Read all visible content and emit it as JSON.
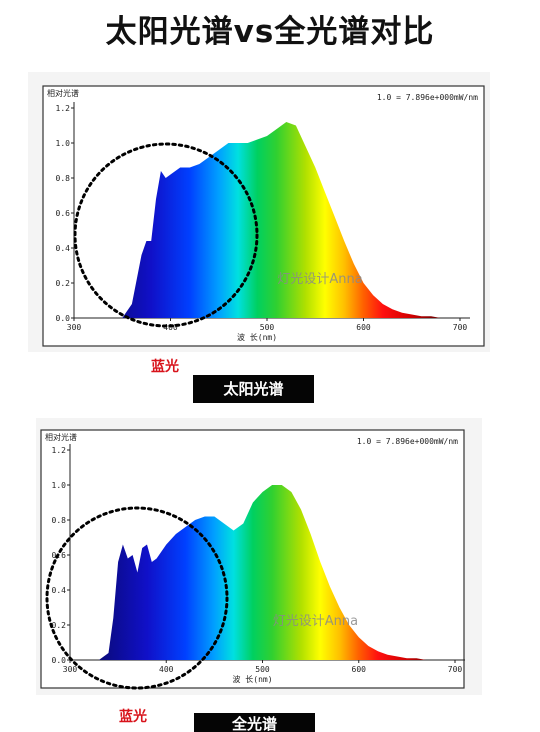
{
  "page_title": "太阳光谱vs全光谱对比",
  "colors": {
    "highlight": "#d8131b",
    "badge_bg": "#050505",
    "badge_text": "#ffffff"
  },
  "charts": [
    {
      "blue_label": "蓝光",
      "caption": "太阳光谱"
    },
    {
      "blue_label": "蓝光",
      "caption": "全光谱"
    }
  ],
  "chart_data": [
    {
      "type": "area",
      "title": "相对光谱",
      "legend_text": "1.0 = 7.896e+000mW/nm",
      "xlabel": "波 长(nm)",
      "x_ticks": [
        "300",
        "400",
        "500",
        "600",
        "700"
      ],
      "y_ticks": [
        "0.0",
        "0.2",
        "0.4",
        "0.6",
        "0.8",
        "1.0",
        "1.2"
      ],
      "xlim": [
        300,
        700
      ],
      "ylim": [
        0,
        1.2
      ],
      "annotation": "灯光设计Anna",
      "x": [
        350,
        360,
        370,
        375,
        380,
        385,
        390,
        395,
        400,
        410,
        420,
        430,
        440,
        450,
        460,
        470,
        480,
        490,
        500,
        510,
        520,
        530,
        540,
        550,
        560,
        570,
        580,
        590,
        600,
        610,
        620,
        630,
        640,
        650,
        660,
        670,
        680
      ],
      "values": [
        0.0,
        0.08,
        0.36,
        0.44,
        0.44,
        0.68,
        0.84,
        0.8,
        0.82,
        0.86,
        0.86,
        0.88,
        0.92,
        0.96,
        1.0,
        1.0,
        1.0,
        1.02,
        1.04,
        1.08,
        1.12,
        1.1,
        0.98,
        0.86,
        0.72,
        0.58,
        0.44,
        0.31,
        0.2,
        0.13,
        0.08,
        0.05,
        0.03,
        0.02,
        0.01,
        0.01,
        0.0
      ]
    },
    {
      "type": "area",
      "title": "相对光谱",
      "legend_text": "1.0 = 7.896e+000mW/nm",
      "xlabel": "波 长(nm)",
      "x_ticks": [
        "300",
        "400",
        "500",
        "600",
        "700"
      ],
      "y_ticks": [
        "0.0",
        "0.2",
        "0.4",
        "0.6",
        "0.8",
        "1.0",
        "1.2"
      ],
      "xlim": [
        300,
        700
      ],
      "ylim": [
        0,
        1.2
      ],
      "annotation": "灯光设计Anna",
      "x": [
        330,
        340,
        345,
        350,
        355,
        360,
        365,
        370,
        375,
        380,
        385,
        390,
        400,
        410,
        420,
        430,
        440,
        450,
        460,
        470,
        480,
        490,
        500,
        510,
        520,
        530,
        540,
        550,
        560,
        570,
        580,
        590,
        600,
        610,
        620,
        630,
        640,
        650,
        660,
        670,
        680
      ],
      "values": [
        0.0,
        0.04,
        0.24,
        0.56,
        0.66,
        0.58,
        0.6,
        0.5,
        0.64,
        0.66,
        0.56,
        0.58,
        0.66,
        0.72,
        0.76,
        0.8,
        0.82,
        0.82,
        0.78,
        0.74,
        0.78,
        0.9,
        0.96,
        1.0,
        1.0,
        0.96,
        0.86,
        0.72,
        0.56,
        0.42,
        0.3,
        0.2,
        0.13,
        0.08,
        0.05,
        0.03,
        0.02,
        0.01,
        0.01,
        0.0,
        0.0
      ]
    }
  ]
}
